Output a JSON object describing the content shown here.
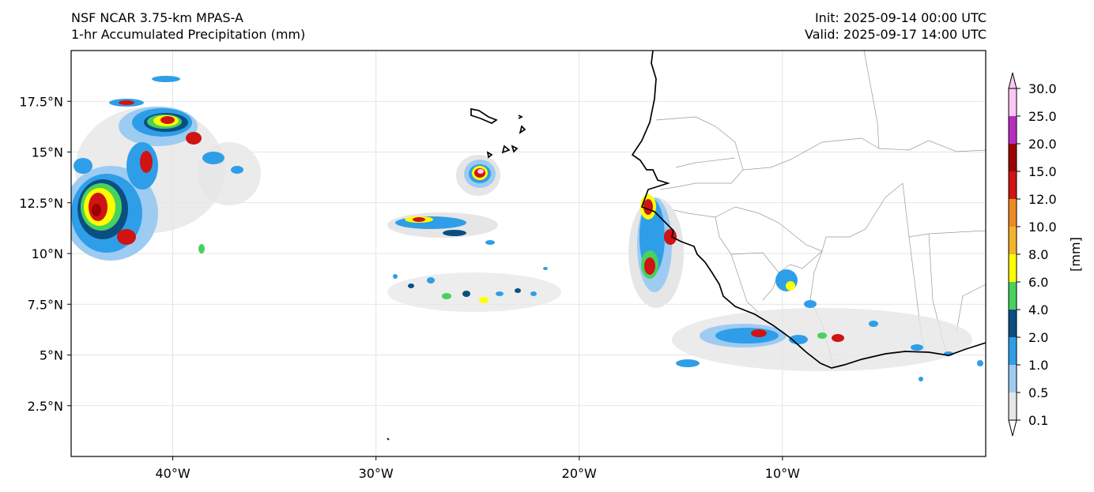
{
  "header": {
    "model_name": "NSF NCAR 3.75-km MPAS-A",
    "field_name": "1-hr Accumulated Precipitation (mm)",
    "init_time": "Init: 2025-09-14 00:00 UTC",
    "valid_time": "Valid: 2025-09-17 14:00 UTC"
  },
  "map": {
    "lon_range": [
      -45,
      0
    ],
    "lat_range": [
      0,
      20
    ],
    "lon_ticks": [
      {
        "value": -40,
        "label": "40°W"
      },
      {
        "value": -30,
        "label": "30°W"
      },
      {
        "value": -20,
        "label": "20°W"
      },
      {
        "value": -10,
        "label": "10°W"
      }
    ],
    "lat_ticks": [
      {
        "value": 2.5,
        "label": "2.5°N"
      },
      {
        "value": 5,
        "label": "5°N"
      },
      {
        "value": 7.5,
        "label": "7.5°N"
      },
      {
        "value": 10,
        "label": "10°N"
      },
      {
        "value": 12.5,
        "label": "12.5°N"
      },
      {
        "value": 15,
        "label": "15°N"
      },
      {
        "value": 17.5,
        "label": "17.5°N"
      }
    ],
    "grid": true
  },
  "colorbar": {
    "unit_label": "[mm]",
    "levels": [
      "0.1",
      "0.5",
      "1.0",
      "2.0",
      "4.0",
      "6.0",
      "8.0",
      "10.0",
      "12.0",
      "15.0",
      "20.0",
      "25.0",
      "30.0"
    ],
    "colors": [
      "#e6e6e6",
      "#9ecbf2",
      "#2f9ee8",
      "#0b4f82",
      "#47d25d",
      "#ffff00",
      "#f4b32a",
      "#ee8a24",
      "#d01313",
      "#9c0000",
      "#b62ec0",
      "#fbc8f4"
    ]
  }
}
